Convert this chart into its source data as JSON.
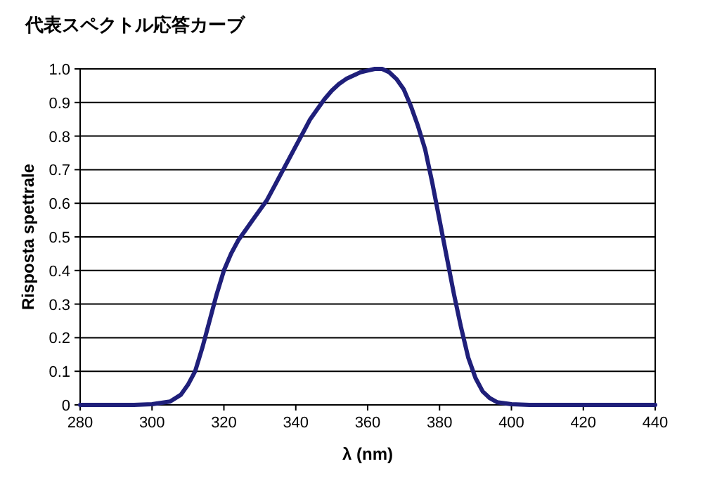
{
  "chart_data": {
    "type": "line",
    "title": "代表スペクトル応答カーブ",
    "xlabel": "λ (nm)",
    "ylabel": "Risposta spettrale",
    "xlim": [
      280,
      440
    ],
    "xticks": [
      280,
      300,
      320,
      340,
      360,
      380,
      400,
      420,
      440
    ],
    "ylim": [
      0,
      1
    ],
    "yticks": [
      0,
      {
        "value": 0.1,
        "label": "0.1"
      },
      {
        "value": 0.2,
        "label": "0.2"
      },
      {
        "value": 0.3,
        "label": "0.3"
      },
      {
        "value": 0.4,
        "label": "0.4"
      },
      {
        "value": 0.5,
        "label": "0.5"
      },
      {
        "value": 0.6,
        "label": "0.6"
      },
      {
        "value": 0.7,
        "label": "0.7"
      },
      {
        "value": 0.8,
        "label": "0.8"
      },
      {
        "value": 0.9,
        "label": "0.9"
      },
      {
        "value": 1,
        "label": "1.0"
      }
    ],
    "grid": "y",
    "marker": "none",
    "line_style": "solid",
    "series": [
      {
        "color": "#1f1f7a",
        "x": [
          280,
          295,
          300,
          305,
          308,
          310,
          312,
          314,
          316,
          318,
          320,
          322,
          324,
          326,
          328,
          330,
          332,
          334,
          336,
          338,
          340,
          342,
          344,
          346,
          348,
          350,
          352,
          354,
          356,
          358,
          360,
          362,
          364,
          366,
          368,
          370,
          372,
          374,
          376,
          378,
          380,
          382,
          384,
          386,
          388,
          390,
          392,
          394,
          396,
          400,
          405,
          440
        ],
        "values": [
          0,
          0,
          0.002,
          0.01,
          0.03,
          0.06,
          0.1,
          0.17,
          0.25,
          0.33,
          0.4,
          0.45,
          0.49,
          0.52,
          0.55,
          0.58,
          0.61,
          0.65,
          0.69,
          0.73,
          0.77,
          0.81,
          0.85,
          0.88,
          0.91,
          0.935,
          0.955,
          0.97,
          0.98,
          0.99,
          0.995,
          1.0,
          1.0,
          0.99,
          0.97,
          0.94,
          0.89,
          0.83,
          0.76,
          0.66,
          0.55,
          0.44,
          0.33,
          0.23,
          0.14,
          0.08,
          0.04,
          0.02,
          0.008,
          0.002,
          0,
          0
        ]
      }
    ]
  }
}
